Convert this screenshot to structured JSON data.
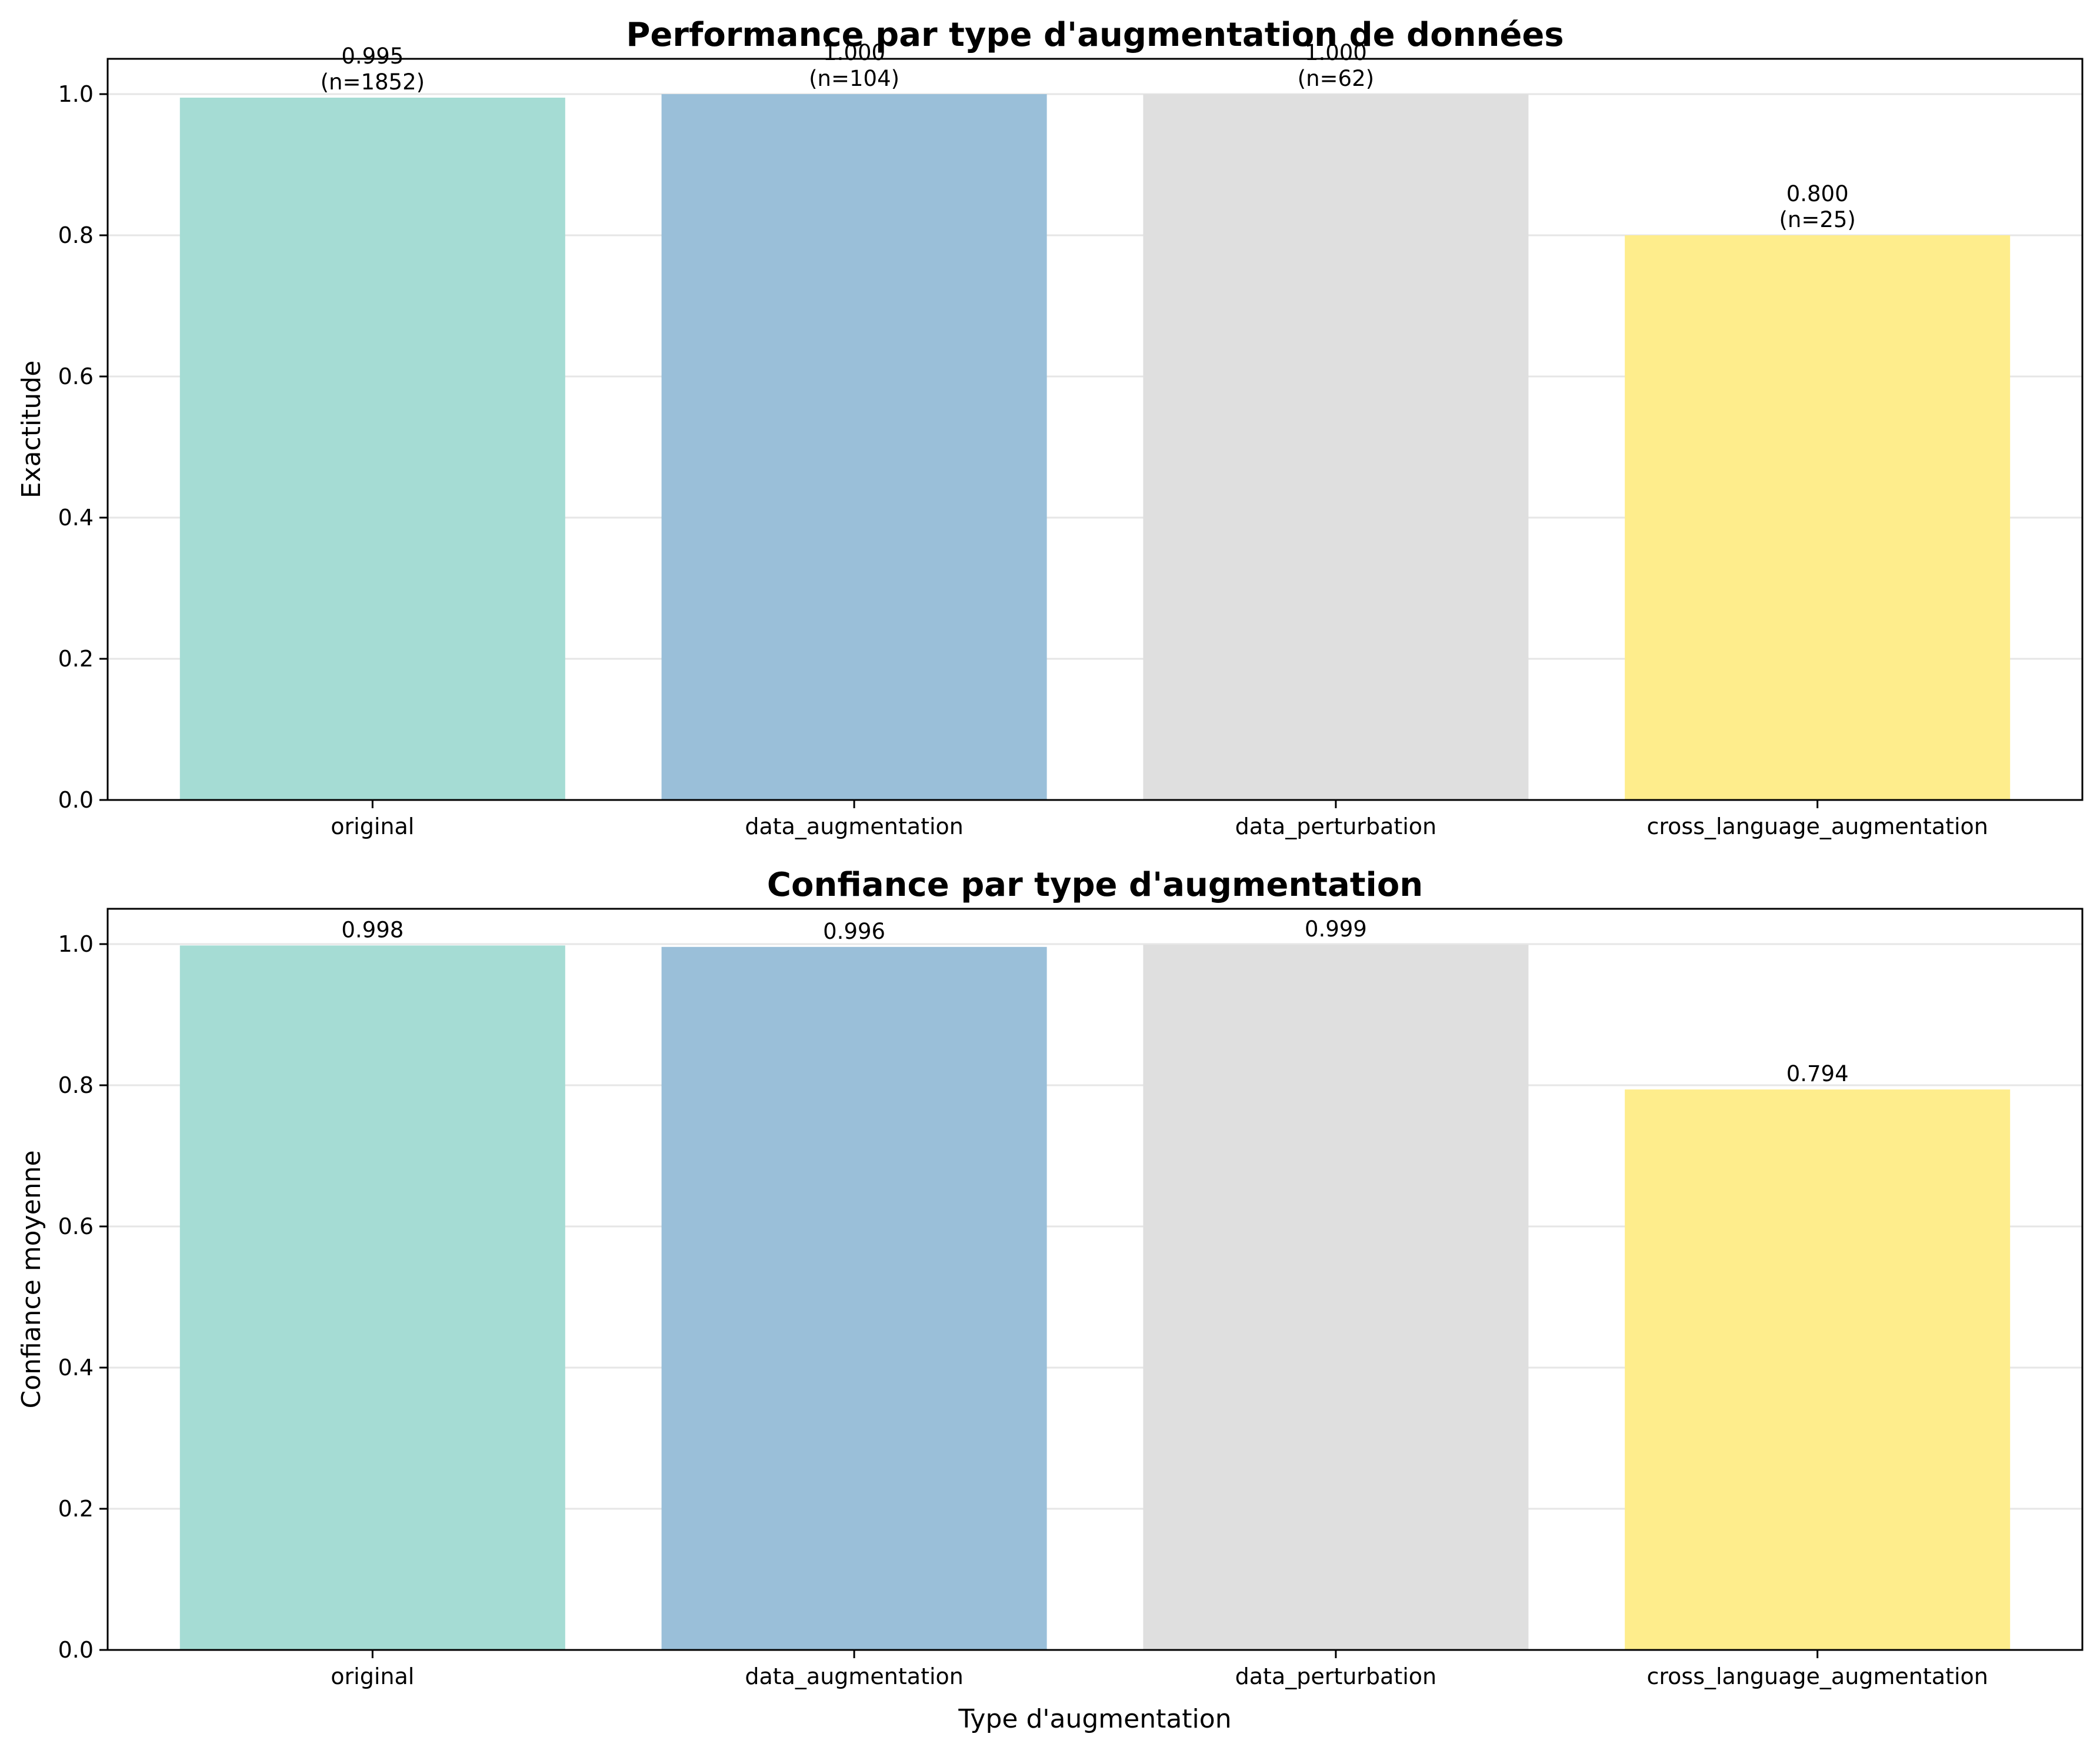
{
  "chart_data": [
    {
      "type": "bar",
      "title": "Performance par type d'augmentation de données",
      "xlabel": "",
      "ylabel": "Exactitude",
      "categories": [
        "original",
        "data_augmentation",
        "data_perturbation",
        "cross_language_augmentation"
      ],
      "values": [
        0.995,
        1.0,
        1.0,
        0.8
      ],
      "bar_labels": [
        "0.995\n(n=1852)",
        "1.000\n(n=104)",
        "1.000\n(n=62)",
        "0.800\n(n=25)"
      ],
      "colors": [
        "#a5dcd4",
        "#9abfd9",
        "#dfdfdf",
        "#feed8c"
      ],
      "ylim": [
        0,
        1.05
      ],
      "yticks": [
        0.0,
        0.2,
        0.4,
        0.6,
        0.8,
        1.0
      ],
      "ytick_labels": [
        "0.0",
        "0.2",
        "0.4",
        "0.6",
        "0.8",
        "1.0"
      ],
      "grid": "y"
    },
    {
      "type": "bar",
      "title": "Confiance par type d'augmentation",
      "xlabel": "Type d'augmentation",
      "ylabel": "Confiance moyenne",
      "categories": [
        "original",
        "data_augmentation",
        "data_perturbation",
        "cross_language_augmentation"
      ],
      "values": [
        0.998,
        0.996,
        0.999,
        0.794
      ],
      "bar_labels": [
        "0.998",
        "0.996",
        "0.999",
        "0.794"
      ],
      "colors": [
        "#a5dcd4",
        "#9abfd9",
        "#dfdfdf",
        "#feed8c"
      ],
      "ylim": [
        0,
        1.05
      ],
      "yticks": [
        0.0,
        0.2,
        0.4,
        0.6,
        0.8,
        1.0
      ],
      "ytick_labels": [
        "0.0",
        "0.2",
        "0.4",
        "0.6",
        "0.8",
        "1.0"
      ],
      "grid": "y"
    }
  ]
}
